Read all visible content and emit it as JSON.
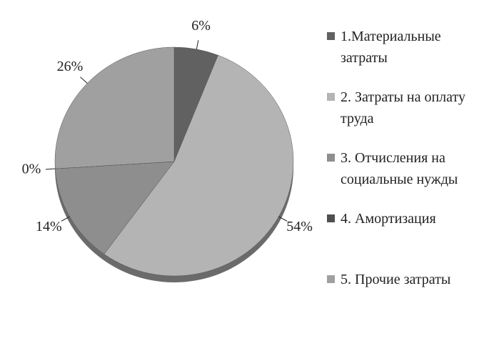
{
  "chart_data": {
    "type": "pie",
    "categories": [
      "1.Материальные затраты",
      "2. Затраты на оплату труда",
      "3. Отчисления на социальные нужды",
      "4. Амортизация",
      "5. Прочие затраты"
    ],
    "values": [
      6,
      54,
      14,
      0,
      26
    ],
    "value_labels": [
      "6%",
      "54%",
      "14%",
      "0%",
      "26%"
    ],
    "colors": [
      "#616161",
      "#b4b4b4",
      "#8e8e8e",
      "#4f4f4f",
      "#a0a0a0"
    ]
  }
}
